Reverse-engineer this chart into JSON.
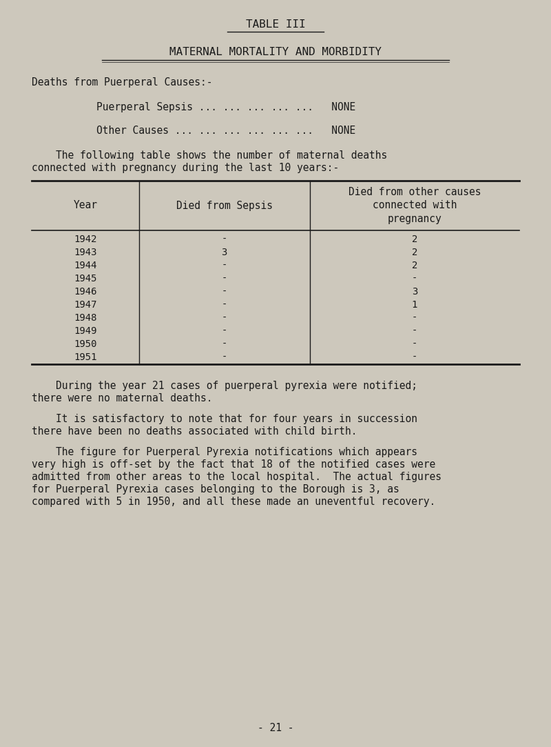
{
  "bg_color": "#cdc8bc",
  "text_color": "#1a1a1a",
  "title": "TABLE III",
  "subtitle": "MATERNAL MORTALITY AND MORBIDITY",
  "deaths_header": "Deaths from Puerperal Causes:-",
  "sepsis_line": "Puerperal Sepsis ... ... ... ... ...   NONE",
  "other_line": "Other Causes ... ... ... ... ... ...   NONE",
  "intro_text1": "    The following table shows the number of maternal deaths",
  "intro_text2": "connected with pregnancy during the last 10 years:-",
  "col_headers": [
    "Year",
    "Died from Sepsis",
    "Died from other causes\nconnected with\npregnancy"
  ],
  "table_data": [
    [
      "1942",
      "-",
      "2"
    ],
    [
      "1943",
      "3",
      "2"
    ],
    [
      "1944",
      "-",
      "2"
    ],
    [
      "1945",
      "-",
      "-"
    ],
    [
      "1946",
      "-",
      "3"
    ],
    [
      "1947",
      "-",
      "1"
    ],
    [
      "1948",
      "-",
      "-"
    ],
    [
      "1949",
      "-",
      "-"
    ],
    [
      "1950",
      "-",
      "-"
    ],
    [
      "1951",
      "-",
      "-"
    ]
  ],
  "para1_indent": "    During the year 21 cases of puerperal pyrexia were notified;",
  "para1_cont": "there were no maternal deaths.",
  "para2_indent": "    It is satisfactory to note that for four years in succession",
  "para2_cont": "there have been no deaths associated with child birth.",
  "para3_indent": "    The figure for Puerperal Pyrexia notifications which appears",
  "para3_line2": "very high is off-set by the fact that 18 of the notified cases were",
  "para3_line3": "admitted from other areas to the local hospital.  The actual figures",
  "para3_line4": "for Puerperal Pyrexia cases belonging to the Borough is 3, as",
  "para3_line5": "compared with 5 in 1950, and all these made an uneventful recovery.",
  "footer": "- 21 -",
  "font_family": "DejaVu Sans Mono",
  "font_size": 10.5,
  "title_font_size": 11.5
}
